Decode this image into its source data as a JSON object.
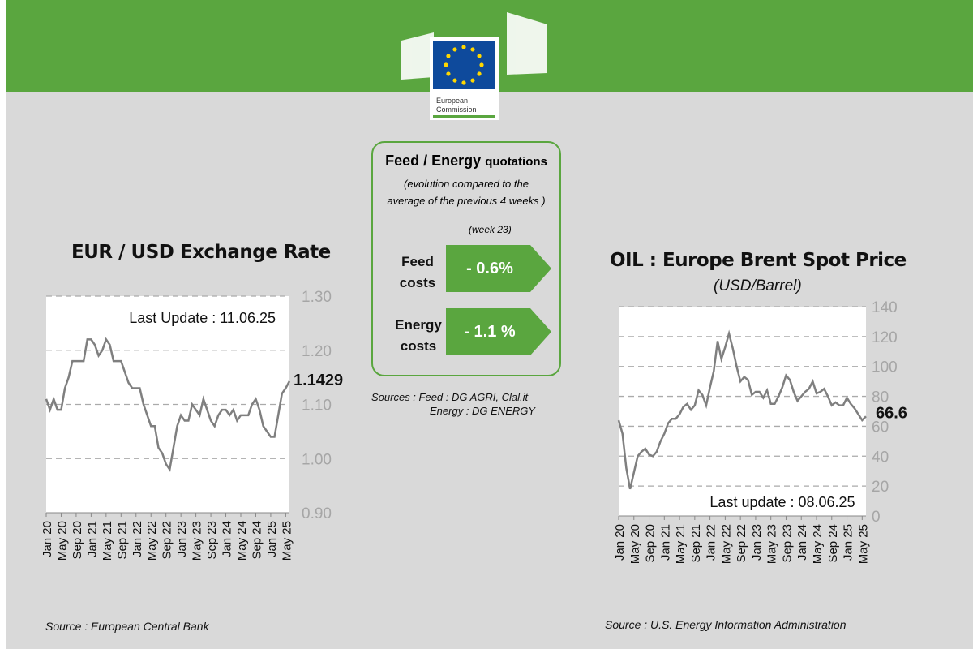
{
  "header": {
    "logo_text": [
      "European",
      "Commission"
    ]
  },
  "panel": {
    "title_bold": "Feed / Energy",
    "title_rest": "quotations",
    "subtitle1": "(evolution compared to the",
    "subtitle2": "average of the previous 4 weeks )",
    "week": "(week 23)",
    "feed_label1": "Feed",
    "feed_label2": "costs",
    "feed_value": "- 0.6%",
    "energy_label1": "Energy",
    "energy_label2": "costs",
    "energy_value": "- 1.1 %",
    "sources1": "Sources :   Feed : DG AGRI, Clal.it",
    "sources2": "Energy : DG ENERGY"
  },
  "colors": {
    "green": "#5aa63f",
    "line": "#7f7f7f",
    "bg": "#d9d9d9"
  },
  "chart_data": [
    {
      "type": "line",
      "title": "EUR / USD Exchange Rate",
      "annotation": "Last Update : 11.06.25",
      "last_value_label": "1.1429",
      "source": "Source : European Central Bank",
      "ylim": [
        0.9,
        1.3
      ],
      "yticks": [
        "0.90",
        "1.00",
        "1.10",
        "1.20",
        "1.30"
      ],
      "ytick_values": [
        0.9,
        1.0,
        1.1,
        1.2,
        1.3
      ],
      "xtick_labels": [
        "Jan 20",
        "May 20",
        "Sep 20",
        "Jan 21",
        "May 21",
        "Sep 21",
        "Jan 22",
        "May 22",
        "Sep 22",
        "Jan 23",
        "May 23",
        "Sep 23",
        "Jan 24",
        "May 24",
        "Sep 24",
        "Jan 25",
        "May 25"
      ],
      "x_start": "Jan 2020",
      "x_step": "month",
      "values": [
        1.11,
        1.09,
        1.11,
        1.09,
        1.09,
        1.13,
        1.15,
        1.18,
        1.18,
        1.18,
        1.18,
        1.22,
        1.22,
        1.21,
        1.19,
        1.2,
        1.22,
        1.21,
        1.18,
        1.18,
        1.18,
        1.16,
        1.14,
        1.13,
        1.13,
        1.13,
        1.1,
        1.08,
        1.06,
        1.06,
        1.02,
        1.01,
        0.99,
        0.98,
        1.02,
        1.06,
        1.08,
        1.07,
        1.07,
        1.1,
        1.09,
        1.08,
        1.11,
        1.09,
        1.07,
        1.06,
        1.08,
        1.09,
        1.09,
        1.08,
        1.09,
        1.07,
        1.08,
        1.08,
        1.08,
        1.1,
        1.11,
        1.09,
        1.06,
        1.05,
        1.04,
        1.04,
        1.08,
        1.12,
        1.13,
        1.1429
      ]
    },
    {
      "type": "line",
      "title": "OIL : Europe Brent Spot Price",
      "subtitle": "(USD/Barrel)",
      "annotation": "Last update :  08.06.25",
      "last_value_label": "66.6",
      "source": "Source : U.S. Energy Information Administration",
      "ylim": [
        0,
        140
      ],
      "yticks": [
        "0",
        "20",
        "40",
        "60",
        "80",
        "100",
        "120",
        "140"
      ],
      "ytick_values": [
        0,
        20,
        40,
        60,
        80,
        100,
        120,
        140
      ],
      "xtick_labels": [
        "Jan 20",
        "May 20",
        "Sep 20",
        "Jan 21",
        "May 21",
        "Sep 21",
        "Jan 22",
        "May 22",
        "Sep 22",
        "Jan 23",
        "May 23",
        "Sep 23",
        "Jan 24",
        "May 24",
        "Sep 24",
        "Jan 25",
        "May 25"
      ],
      "x_start": "Jan 2020",
      "x_step": "month",
      "values": [
        64,
        55,
        32,
        18,
        29,
        40,
        43,
        45,
        41,
        40,
        43,
        50,
        55,
        62,
        65,
        65,
        68,
        73,
        75,
        71,
        74,
        84,
        81,
        74,
        86,
        97,
        117,
        105,
        113,
        122,
        112,
        100,
        90,
        93,
        91,
        81,
        83,
        83,
        79,
        84,
        75,
        75,
        80,
        86,
        94,
        91,
        83,
        77,
        80,
        83,
        85,
        90,
        82,
        83,
        85,
        80,
        74,
        76,
        74,
        74,
        79,
        75,
        72,
        68,
        64,
        66.6
      ]
    }
  ]
}
